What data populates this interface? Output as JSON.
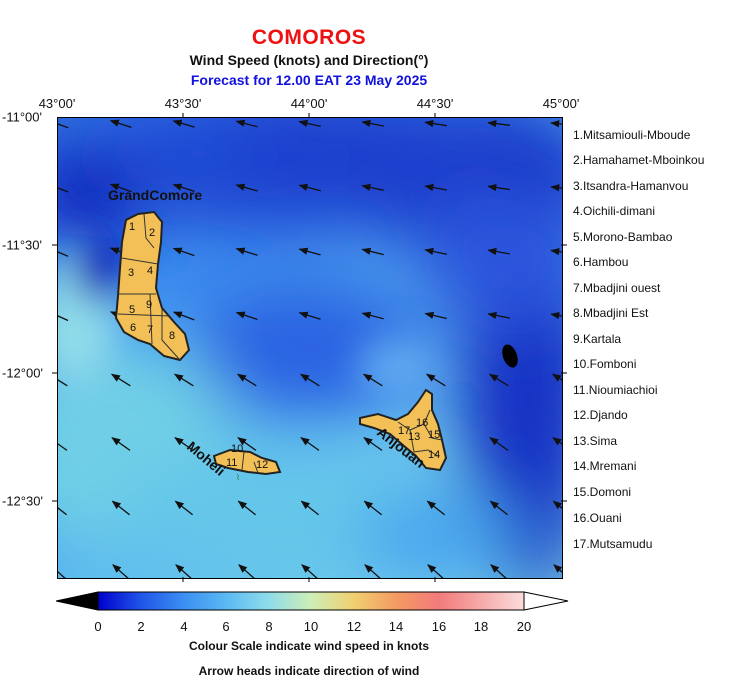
{
  "header": {
    "country": "COMOROS",
    "subtitle": "Wind Speed (knots) and Direction(°)",
    "forecast": "Forecast for  12.00 EAT 23 May 2025"
  },
  "axes": {
    "lon_labels": [
      "43°00'",
      "43°30'",
      "44°00'",
      "44°30'",
      "45°00'"
    ],
    "lat_labels": [
      "-11°00'",
      "-11°30'",
      "-12°00'",
      "-12°30'"
    ]
  },
  "islands": {
    "grand_comore": "GrandComore",
    "moheli": "Moheli",
    "anjouan": "Anjouan",
    "region_numbers": [
      "1",
      "2",
      "3",
      "4",
      "5",
      "6",
      "7",
      "8",
      "9",
      "10",
      "11",
      "12",
      "13",
      "14",
      "15",
      "16",
      "17"
    ]
  },
  "regions_legend": [
    "1.Mitsamiouli-Mboude",
    "2.Hamahamet-Mboinkou",
    "3.Itsandra-Hamanvou",
    "4.Oichili-dimani",
    "5.Morono-Bambao",
    "6.Hambou",
    "7.Mbadjini ouest",
    "8.Mbadjini Est",
    "9.Kartala",
    "10.Fomboni",
    "11.Nioumiachioi",
    "12.Djando",
    "13.Sima",
    "14.Mremani",
    "15.Domoni",
    "16.Ouani",
    "17.Mutsamudu"
  ],
  "colorbar": {
    "ticks": [
      "0",
      "2",
      "4",
      "6",
      "8",
      "10",
      "12",
      "14",
      "16",
      "18",
      "20"
    ],
    "colors": [
      "#0000cc",
      "#1f55e8",
      "#3b8ef2",
      "#5ab9f3",
      "#8fdcea",
      "#cdeeb6",
      "#f0d070",
      "#f49a62",
      "#f27b7b",
      "#f6aaaa",
      "#fbdcdc"
    ],
    "under_color": "#000000",
    "over_color": "#ffffff",
    "caption": "Colour Scale indicate wind speed in knots"
  },
  "note": "Arrow heads indicate direction of wind"
}
